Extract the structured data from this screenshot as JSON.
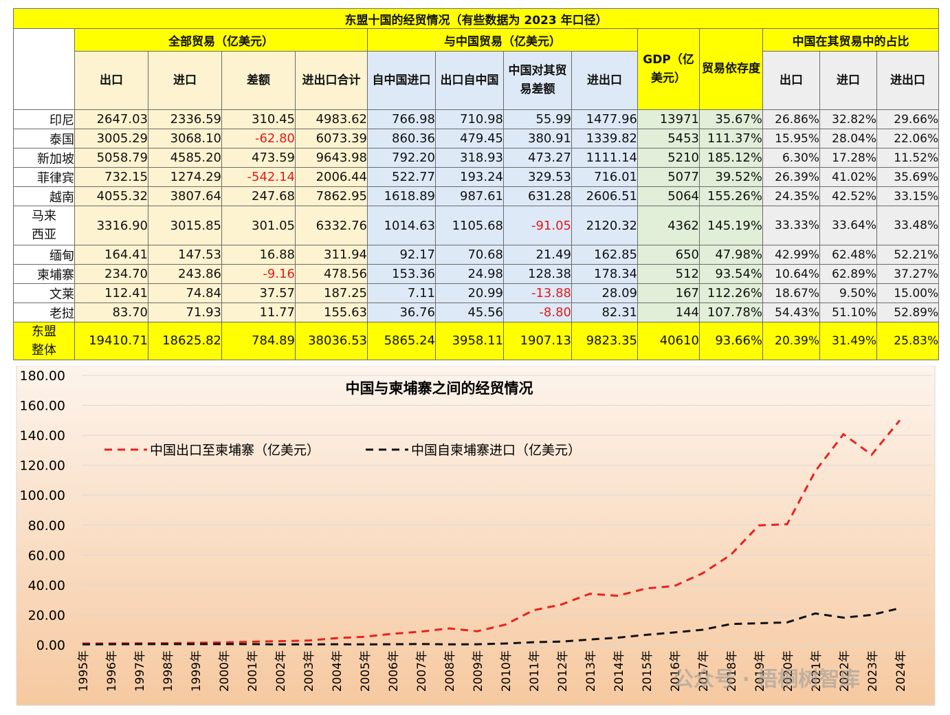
{
  "table": {
    "title": "东盟十国的经贸情况（有些数据为 2023 年口径）",
    "groups": {
      "total_trade": "全部贸易（亿美元）",
      "china_trade": "与中国贸易（亿美元）",
      "gdp": "GDP（亿美元）",
      "dependence": "贸易依存度",
      "china_share": "中国在其贸易中的占比"
    },
    "headers": {
      "exports": "出口",
      "imports": "进口",
      "balance": "差额",
      "total": "进出口合计",
      "from_china": "自中国进口",
      "to_china": "出口自中国",
      "china_balance": "中国对其贸易差额",
      "china_total": "进出口",
      "share_exports": "出口",
      "share_imports": "进口",
      "share_total": "进出口"
    },
    "rows": [
      {
        "name": "印尼",
        "v": [
          "2647.03",
          "2336.59",
          "310.45",
          "4983.62",
          "766.98",
          "710.98",
          "55.99",
          "1477.96",
          "13971",
          "35.67%",
          "26.86%",
          "32.82%",
          "29.66%"
        ]
      },
      {
        "name": "泰国",
        "v": [
          "3005.29",
          "3068.10",
          "-62.80",
          "6073.39",
          "860.36",
          "479.45",
          "380.91",
          "1339.82",
          "5453",
          "111.37%",
          "15.95%",
          "28.04%",
          "22.06%"
        ]
      },
      {
        "name": "新加坡",
        "v": [
          "5058.79",
          "4585.20",
          "473.59",
          "9643.98",
          "792.20",
          "318.93",
          "473.27",
          "1111.14",
          "5210",
          "185.12%",
          "6.30%",
          "17.28%",
          "11.52%"
        ]
      },
      {
        "name": "菲律宾",
        "v": [
          "732.15",
          "1274.29",
          "-542.14",
          "2006.44",
          "522.77",
          "193.24",
          "329.53",
          "716.01",
          "5077",
          "39.52%",
          "26.39%",
          "41.02%",
          "35.69%"
        ]
      },
      {
        "name": "越南",
        "v": [
          "4055.32",
          "3807.64",
          "247.68",
          "7862.95",
          "1618.89",
          "987.61",
          "631.28",
          "2606.51",
          "5064",
          "155.26%",
          "24.35%",
          "42.52%",
          "33.15%"
        ]
      },
      {
        "name": "马来西亚",
        "v": [
          "3316.90",
          "3015.85",
          "301.05",
          "6332.76",
          "1014.63",
          "1105.68",
          "-91.05",
          "2120.32",
          "4362",
          "145.19%",
          "33.33%",
          "33.64%",
          "33.48%"
        ]
      },
      {
        "name": "缅甸",
        "v": [
          "164.41",
          "147.53",
          "16.88",
          "311.94",
          "92.17",
          "70.68",
          "21.49",
          "162.85",
          "650",
          "47.98%",
          "42.99%",
          "62.48%",
          "52.21%"
        ]
      },
      {
        "name": "柬埔寨",
        "v": [
          "234.70",
          "243.86",
          "-9.16",
          "478.56",
          "153.36",
          "24.98",
          "128.38",
          "178.34",
          "512",
          "93.54%",
          "10.64%",
          "62.89%",
          "37.27%"
        ]
      },
      {
        "name": "文莱",
        "v": [
          "112.41",
          "74.84",
          "37.57",
          "187.25",
          "7.11",
          "20.99",
          "-13.88",
          "28.09",
          "167",
          "112.26%",
          "18.67%",
          "9.50%",
          "15.00%"
        ]
      },
      {
        "name": "老挝",
        "v": [
          "83.70",
          "71.93",
          "11.77",
          "155.63",
          "36.76",
          "45.56",
          "-8.80",
          "82.31",
          "144",
          "107.78%",
          "54.43%",
          "51.10%",
          "52.89%"
        ]
      }
    ],
    "total_row": {
      "name": "东盟整体",
      "v": [
        "19410.71",
        "18625.82",
        "784.89",
        "38036.53",
        "5865.24",
        "3958.11",
        "1907.13",
        "9823.35",
        "40610",
        "93.66%",
        "20.39%",
        "31.49%",
        "25.83%"
      ]
    }
  },
  "chart_data": {
    "type": "line",
    "title": "中国与柬埔寨之间的经贸情况",
    "x": [
      "1995年",
      "1996年",
      "1997年",
      "1998年",
      "1999年",
      "2000年",
      "2001年",
      "2002年",
      "2003年",
      "2004年",
      "2005年",
      "2006年",
      "2007年",
      "2008年",
      "2009年",
      "2010年",
      "2011年",
      "2012年",
      "2013年",
      "2014年",
      "2015年",
      "2016年",
      "2017年",
      "2018年",
      "2019年",
      "2020年",
      "2021年",
      "2022年",
      "2023年",
      "2024年"
    ],
    "ylim": [
      0,
      180
    ],
    "yticks": [
      "0.00",
      "20.00",
      "40.00",
      "60.00",
      "80.00",
      "100.00",
      "120.00",
      "140.00",
      "160.00",
      "180.00"
    ],
    "grid": true,
    "legend": "top-left, inside",
    "series": [
      {
        "name": "中国出口至柬埔寨（亿美元）",
        "color": "#e8221e",
        "style": "dashed",
        "values": [
          0.9,
          0.9,
          1.0,
          1.1,
          1.4,
          1.6,
          2.1,
          2.5,
          2.9,
          4.5,
          5.4,
          7.4,
          8.8,
          11.0,
          9.1,
          13.5,
          23.1,
          27.0,
          34.1,
          32.8,
          37.7,
          39.3,
          47.8,
          60.1,
          79.8,
          80.6,
          116.0,
          140.7,
          127.0,
          150.0
        ]
      },
      {
        "name": "中国自柬埔寨进口（亿美元）",
        "color": "#111111",
        "style": "dashed",
        "values": [
          0.3,
          0.4,
          0.5,
          0.5,
          0.5,
          0.5,
          0.5,
          0.3,
          0.3,
          0.4,
          0.3,
          0.4,
          0.6,
          0.3,
          0.4,
          0.9,
          1.8,
          2.2,
          3.6,
          4.8,
          6.7,
          8.3,
          10.1,
          13.9,
          14.4,
          15.0,
          21.0,
          18.2,
          20.0,
          24.5
        ]
      }
    ]
  },
  "watermark": "公众号 · 梧桐树智库",
  "colors": {
    "accent_yellow": "#ffff00",
    "negative": "#e31a1c",
    "band_top": "#fdf3ea",
    "band_bottom": "#f5c69a"
  }
}
